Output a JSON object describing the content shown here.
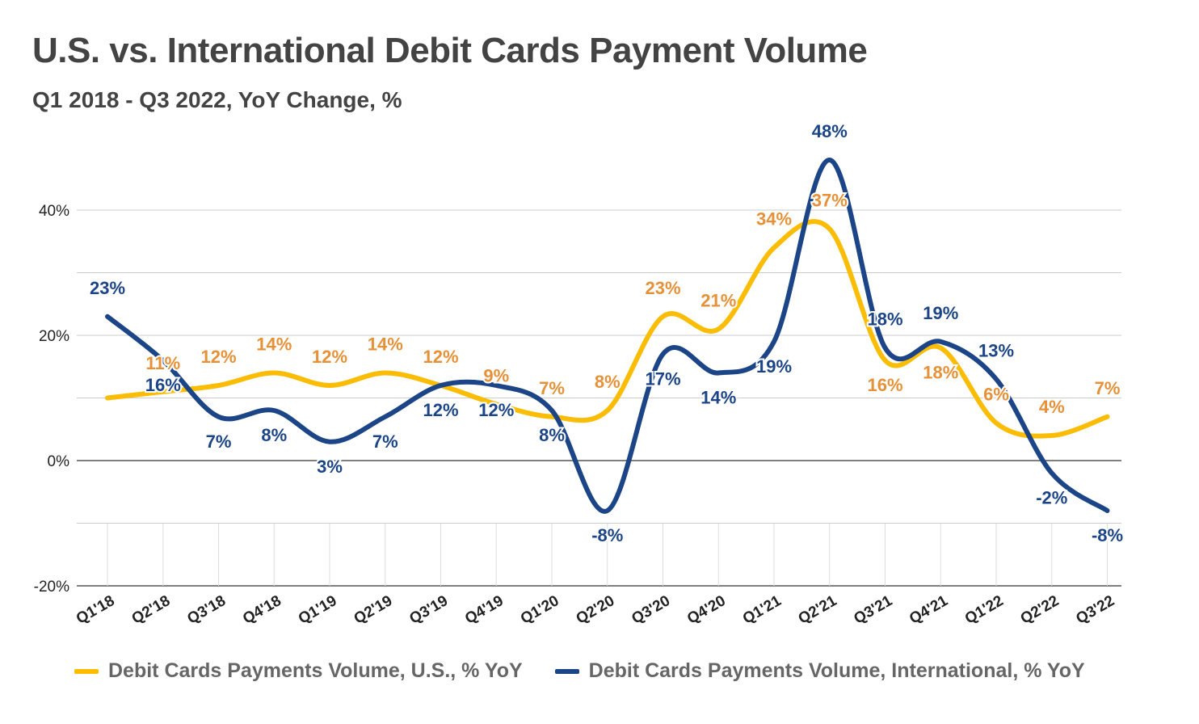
{
  "title": "U.S. vs. International Debit Cards Payment Volume",
  "subtitle": "Q1 2018 - Q3 2022, YoY Change, %",
  "chart_data": {
    "type": "line",
    "categories": [
      "Q1'18",
      "Q2'18",
      "Q3'18",
      "Q4'18",
      "Q1'19",
      "Q2'19",
      "Q3'19",
      "Q4'19",
      "Q1'20",
      "Q2'20",
      "Q3'20",
      "Q4'20",
      "Q1'21",
      "Q2'21",
      "Q3'21",
      "Q4'21",
      "Q1'22",
      "Q2'22",
      "Q3'22"
    ],
    "series": [
      {
        "name": "Debit Cards Payments Volume, U.S., % YoY",
        "color": "#fbbc04",
        "label_color": "#e69138",
        "values": [
          10,
          11,
          12,
          14,
          12,
          14,
          12,
          9,
          7,
          8,
          23,
          21,
          34,
          37,
          16,
          18,
          6,
          4,
          7
        ],
        "labels": [
          "",
          "11%",
          "12%",
          "14%",
          "12%",
          "14%",
          "12%",
          "9%",
          "7%",
          "8%",
          "23%",
          "21%",
          "34%",
          "37%",
          "16%",
          "18%",
          "6%",
          "4%",
          "7%"
        ]
      },
      {
        "name": "Debit Cards Payments Volume, International, % YoY",
        "color": "#1c4587",
        "label_color": "#1c4587",
        "values": [
          23,
          16,
          7,
          8,
          3,
          7,
          12,
          12,
          8,
          -8,
          17,
          14,
          19,
          48,
          18,
          19,
          13,
          -2,
          -8
        ],
        "labels": [
          "23%",
          "16%",
          "7%",
          "8%",
          "3%",
          "7%",
          "12%",
          "12%",
          "8%",
          "-8%",
          "17%",
          "14%",
          "19%",
          "48%",
          "18%",
          "19%",
          "13%",
          "-2%",
          "-8%"
        ]
      }
    ],
    "y_ticks": [
      "40%",
      "20%",
      "0%",
      "-20%"
    ],
    "ylim": [
      -20,
      40
    ],
    "grid": true,
    "legend_position": "bottom"
  }
}
